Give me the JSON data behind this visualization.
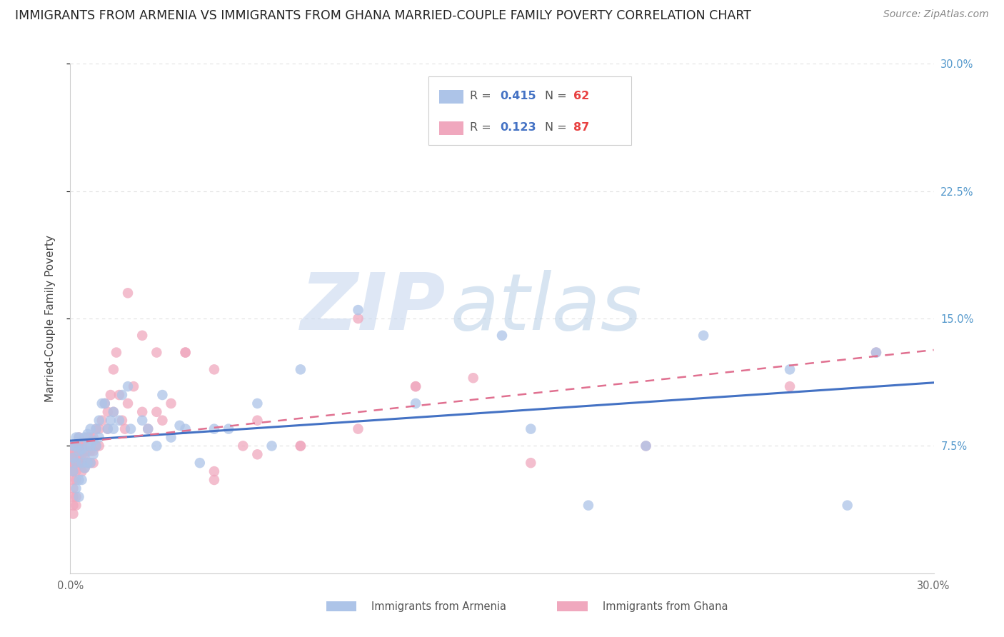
{
  "title": "IMMIGRANTS FROM ARMENIA VS IMMIGRANTS FROM GHANA MARRIED-COUPLE FAMILY POVERTY CORRELATION CHART",
  "source": "Source: ZipAtlas.com",
  "ylabel": "Married-Couple Family Poverty",
  "xlim": [
    0.0,
    0.3
  ],
  "ylim": [
    0.0,
    0.3
  ],
  "armenia_R": 0.415,
  "armenia_N": 62,
  "ghana_R": 0.123,
  "ghana_N": 87,
  "armenia_color": "#adc4e8",
  "ghana_color": "#f0a8be",
  "armenia_line_color": "#4472c4",
  "ghana_line_color": "#e07090",
  "r_color": "#4472c4",
  "n_color": "#e84040",
  "legend_label_armenia": "Immigrants from Armenia",
  "legend_label_ghana": "Immigrants from Ghana",
  "watermark_zip": "ZIP",
  "watermark_atlas": "atlas",
  "background_color": "#ffffff",
  "grid_color": "#e0e0e0",
  "title_fontsize": 12.5,
  "source_fontsize": 10,
  "tick_fontsize": 10.5,
  "right_tick_color": "#5599cc",
  "armenia_x": [
    0.001,
    0.001,
    0.001,
    0.002,
    0.002,
    0.002,
    0.002,
    0.003,
    0.003,
    0.003,
    0.003,
    0.004,
    0.004,
    0.004,
    0.005,
    0.005,
    0.005,
    0.006,
    0.006,
    0.006,
    0.007,
    0.007,
    0.007,
    0.008,
    0.008,
    0.009,
    0.009,
    0.01,
    0.01,
    0.011,
    0.012,
    0.013,
    0.014,
    0.015,
    0.015,
    0.017,
    0.018,
    0.02,
    0.021,
    0.025,
    0.027,
    0.03,
    0.032,
    0.035,
    0.038,
    0.04,
    0.045,
    0.05,
    0.055,
    0.065,
    0.07,
    0.08,
    0.1,
    0.12,
    0.15,
    0.16,
    0.18,
    0.2,
    0.22,
    0.25,
    0.27,
    0.28
  ],
  "armenia_y": [
    0.075,
    0.068,
    0.06,
    0.08,
    0.075,
    0.065,
    0.05,
    0.08,
    0.072,
    0.055,
    0.045,
    0.073,
    0.065,
    0.055,
    0.08,
    0.07,
    0.062,
    0.082,
    0.075,
    0.065,
    0.085,
    0.075,
    0.065,
    0.078,
    0.07,
    0.085,
    0.075,
    0.09,
    0.08,
    0.1,
    0.1,
    0.085,
    0.09,
    0.095,
    0.085,
    0.09,
    0.105,
    0.11,
    0.085,
    0.09,
    0.085,
    0.075,
    0.105,
    0.08,
    0.087,
    0.085,
    0.065,
    0.085,
    0.085,
    0.1,
    0.075,
    0.12,
    0.155,
    0.1,
    0.14,
    0.085,
    0.04,
    0.075,
    0.14,
    0.12,
    0.04,
    0.13
  ],
  "ghana_x": [
    0.001,
    0.001,
    0.001,
    0.001,
    0.001,
    0.001,
    0.001,
    0.001,
    0.001,
    0.001,
    0.001,
    0.001,
    0.002,
    0.002,
    0.002,
    0.002,
    0.002,
    0.002,
    0.002,
    0.002,
    0.002,
    0.003,
    0.003,
    0.003,
    0.003,
    0.003,
    0.003,
    0.004,
    0.004,
    0.004,
    0.004,
    0.005,
    0.005,
    0.005,
    0.006,
    0.006,
    0.006,
    0.007,
    0.007,
    0.007,
    0.008,
    0.008,
    0.008,
    0.009,
    0.009,
    0.01,
    0.01,
    0.011,
    0.012,
    0.013,
    0.013,
    0.014,
    0.015,
    0.015,
    0.016,
    0.017,
    0.018,
    0.019,
    0.02,
    0.022,
    0.025,
    0.027,
    0.03,
    0.032,
    0.035,
    0.04,
    0.05,
    0.05,
    0.06,
    0.065,
    0.08,
    0.1,
    0.12,
    0.14,
    0.16,
    0.02,
    0.025,
    0.03,
    0.04,
    0.05,
    0.065,
    0.08,
    0.1,
    0.12,
    0.2,
    0.25,
    0.28
  ],
  "ghana_y": [
    0.07,
    0.065,
    0.06,
    0.075,
    0.07,
    0.065,
    0.06,
    0.055,
    0.05,
    0.045,
    0.04,
    0.035,
    0.07,
    0.065,
    0.06,
    0.075,
    0.07,
    0.065,
    0.055,
    0.045,
    0.04,
    0.075,
    0.07,
    0.065,
    0.08,
    0.075,
    0.065,
    0.075,
    0.07,
    0.065,
    0.06,
    0.075,
    0.068,
    0.062,
    0.08,
    0.072,
    0.065,
    0.08,
    0.072,
    0.065,
    0.08,
    0.072,
    0.065,
    0.085,
    0.075,
    0.085,
    0.075,
    0.09,
    0.1,
    0.095,
    0.085,
    0.105,
    0.12,
    0.095,
    0.13,
    0.105,
    0.09,
    0.085,
    0.1,
    0.11,
    0.095,
    0.085,
    0.095,
    0.09,
    0.1,
    0.13,
    0.06,
    0.055,
    0.075,
    0.07,
    0.075,
    0.15,
    0.11,
    0.115,
    0.065,
    0.165,
    0.14,
    0.13,
    0.13,
    0.12,
    0.09,
    0.075,
    0.085,
    0.11,
    0.075,
    0.11,
    0.13
  ]
}
